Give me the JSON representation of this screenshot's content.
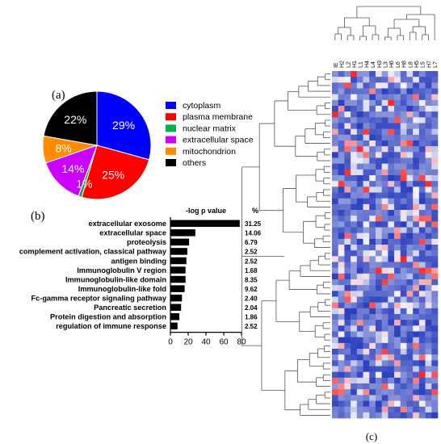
{
  "panel_labels": {
    "a": "(a)",
    "b": "(b)",
    "c": "(c)"
  },
  "chart_data": [
    {
      "type": "pie",
      "panel": "(a)",
      "slices": [
        {
          "name": "cytoplasm",
          "value": 29,
          "label": "29%",
          "color": "#0000ff"
        },
        {
          "name": "plasma membrane",
          "value": 25,
          "label": "25%",
          "color": "#ff0000"
        },
        {
          "name": "nuclear matrix",
          "value": 1,
          "label": "1%",
          "color": "#00b050"
        },
        {
          "name": "extracellular space",
          "value": 14,
          "label": "14%",
          "color": "#cc00ff"
        },
        {
          "name": "mitochondrion",
          "value": 8,
          "label": "8%",
          "color": "#ff8c00"
        },
        {
          "name": "others",
          "value": 22,
          "label": "22%",
          "color": "#000000"
        }
      ],
      "legend_position": "right"
    },
    {
      "type": "bar",
      "orientation": "horizontal",
      "panel": "(b)",
      "xlabel": "-log p value",
      "percent_header": "%",
      "xlim": [
        0,
        80
      ],
      "xticks": [
        "0",
        "20",
        "40",
        "60",
        "80"
      ],
      "categories": [
        "extracellular exosome",
        "extracellular space",
        "proteolysis",
        "complement activation, classical pathway",
        "antigen binding",
        "Immunoglobulin V region",
        "Immunoglobulin-like domain",
        "Immunoglobulin-like fold",
        "Fc-gamma receptor signaling pathway",
        "Pancreatic secretion",
        "Protein digestion and absorption",
        "regulation of immune response"
      ],
      "values": [
        78,
        28,
        21,
        19,
        18,
        17,
        17,
        16,
        13,
        12,
        10,
        8
      ],
      "percent_labels": [
        "31.25",
        "14.06",
        "6.79",
        "2.52",
        "2.52",
        "1.68",
        "8.35",
        "9.62",
        "2.40",
        "2.04",
        "1.86",
        "2.52"
      ],
      "bar_color": "#000000"
    },
    {
      "type": "heatmap",
      "panel": "(c)",
      "columns": [
        "IE",
        "H2",
        "L2",
        "H1",
        "L1",
        "H4",
        "L4",
        "H3",
        "L3",
        "H6",
        "L6",
        "H8",
        "L8",
        "H5",
        "L5",
        "H7",
        "L7"
      ],
      "row_count": 60,
      "colors": {
        "low": "#2a3fbf",
        "mid": "#f2f2f6",
        "high": "#ff2020"
      },
      "row_dendrogram": true,
      "column_dendrogram": true
    }
  ]
}
